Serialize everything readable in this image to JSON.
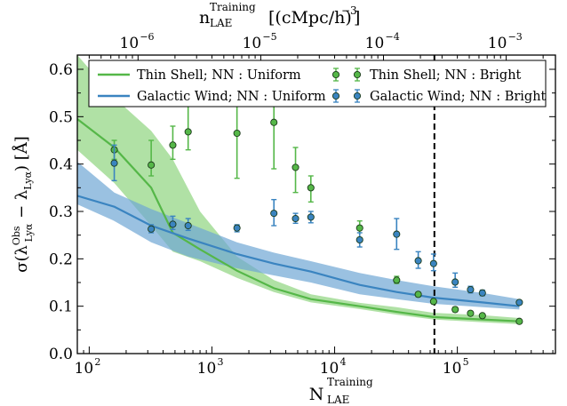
{
  "chart_data": {
    "type": "line",
    "xlabel_main": "N",
    "xlabel_sup": "Training",
    "xlabel_sub": "LAE",
    "top_xlabel_main": "n",
    "top_xlabel_sup": "Training",
    "top_xlabel_sub": "LAE",
    "top_xlabel_units": "[(cMpc/h)",
    "top_xlabel_units_exp": "−3",
    "top_xlabel_units_close": "]",
    "ylabel_pre": "σ(λ",
    "ylabel_sup1": "Obs",
    "ylabel_sub1": "Lyα",
    "ylabel_mid": " − λ",
    "ylabel_sub2": "Lyα",
    "ylabel_post": ") [Å]",
    "x_scale": "log",
    "xlim": [
      80,
      630000
    ],
    "ylim": [
      0.0,
      0.63
    ],
    "y_ticks": [
      0.0,
      0.1,
      0.2,
      0.3,
      0.4,
      0.5,
      0.6
    ],
    "y_tick_labels": [
      "0.0",
      "0.1",
      "0.2",
      "0.3",
      "0.4",
      "0.5",
      "0.6"
    ],
    "x_ticks": [
      100,
      1000,
      10000,
      100000
    ],
    "x_tick_labels": [
      {
        "base": "10",
        "exp": "2"
      },
      {
        "base": "10",
        "exp": "3"
      },
      {
        "base": "10",
        "exp": "4"
      },
      {
        "base": "10",
        "exp": "5"
      }
    ],
    "top_x_ticks_at_bottom": [
      250,
      2500,
      25000,
      250000
    ],
    "top_x_tick_labels": [
      {
        "base": "10",
        "exp": "−6"
      },
      {
        "base": "10",
        "exp": "−5"
      },
      {
        "base": "10",
        "exp": "−4"
      },
      {
        "base": "10",
        "exp": "−3"
      }
    ],
    "vline_x": 65000,
    "grid": false,
    "legend_position": "top",
    "colors": {
      "green": "#55b748",
      "green_fill": "#8fd47f",
      "blue": "#3a84c0",
      "blue_fill": "#6fa7d4"
    },
    "series": [
      {
        "name": "Thin Shell; NN : Uniform",
        "kind": "line_band",
        "color": "green",
        "x": [
          80,
          160,
          320,
          480,
          800,
          1600,
          3200,
          6400,
          16000,
          32000,
          64000,
          160000,
          320000
        ],
        "y": [
          0.495,
          0.435,
          0.35,
          0.255,
          0.22,
          0.175,
          0.138,
          0.115,
          0.1,
          0.088,
          0.077,
          0.072,
          0.068
        ],
        "lower": [
          0.43,
          0.36,
          0.27,
          0.215,
          0.195,
          0.16,
          0.13,
          0.108,
          0.094,
          0.082,
          0.072,
          0.066,
          0.062
        ],
        "upper": [
          0.63,
          0.54,
          0.47,
          0.41,
          0.3,
          0.205,
          0.155,
          0.125,
          0.107,
          0.098,
          0.086,
          0.081,
          0.075
        ]
      },
      {
        "name": "Galactic Wind; NN : Uniform",
        "kind": "line_band",
        "color": "blue",
        "x": [
          80,
          160,
          320,
          640,
          1600,
          3200,
          6400,
          16000,
          32000,
          64000,
          160000,
          320000
        ],
        "y": [
          0.333,
          0.31,
          0.27,
          0.243,
          0.21,
          0.19,
          0.173,
          0.145,
          0.13,
          0.118,
          0.108,
          0.1
        ],
        "lower": [
          0.315,
          0.28,
          0.235,
          0.205,
          0.18,
          0.165,
          0.15,
          0.125,
          0.115,
          0.105,
          0.098,
          0.093
        ],
        "upper": [
          0.405,
          0.34,
          0.305,
          0.275,
          0.235,
          0.213,
          0.195,
          0.17,
          0.155,
          0.142,
          0.128,
          0.115
        ]
      },
      {
        "name": "Thin Shell; NN : Bright",
        "kind": "errorbar",
        "color": "green",
        "points": [
          {
            "x": 160,
            "y": 0.43,
            "lo": 0.41,
            "hi": 0.45
          },
          {
            "x": 320,
            "y": 0.398,
            "lo": 0.375,
            "hi": 0.45
          },
          {
            "x": 480,
            "y": 0.44,
            "lo": 0.41,
            "hi": 0.48
          },
          {
            "x": 640,
            "y": 0.468,
            "lo": 0.43,
            "hi": 0.6
          },
          {
            "x": 1600,
            "y": 0.465,
            "lo": 0.37,
            "hi": 0.6
          },
          {
            "x": 3200,
            "y": 0.488,
            "lo": 0.39,
            "hi": 0.6
          },
          {
            "x": 4800,
            "y": 0.393,
            "lo": 0.34,
            "hi": 0.435
          },
          {
            "x": 6400,
            "y": 0.35,
            "lo": 0.32,
            "hi": 0.375
          },
          {
            "x": 16000,
            "y": 0.265,
            "lo": 0.245,
            "hi": 0.28
          },
          {
            "x": 32000,
            "y": 0.155,
            "lo": 0.148,
            "hi": 0.163
          },
          {
            "x": 48000,
            "y": 0.125,
            "lo": 0.12,
            "hi": 0.13
          },
          {
            "x": 64000,
            "y": 0.11,
            "lo": 0.105,
            "hi": 0.115
          },
          {
            "x": 96000,
            "y": 0.093,
            "lo": 0.088,
            "hi": 0.098
          },
          {
            "x": 128000,
            "y": 0.085,
            "lo": 0.081,
            "hi": 0.089
          },
          {
            "x": 160000,
            "y": 0.08,
            "lo": 0.076,
            "hi": 0.084
          },
          {
            "x": 320000,
            "y": 0.068,
            "lo": 0.065,
            "hi": 0.071
          }
        ]
      },
      {
        "name": "Galactic Wind; NN : Bright",
        "kind": "errorbar",
        "color": "blue",
        "points": [
          {
            "x": 160,
            "y": 0.402,
            "lo": 0.365,
            "hi": 0.44
          },
          {
            "x": 320,
            "y": 0.263,
            "lo": 0.255,
            "hi": 0.272
          },
          {
            "x": 480,
            "y": 0.273,
            "lo": 0.262,
            "hi": 0.29
          },
          {
            "x": 640,
            "y": 0.27,
            "lo": 0.26,
            "hi": 0.285
          },
          {
            "x": 1600,
            "y": 0.265,
            "lo": 0.257,
            "hi": 0.272
          },
          {
            "x": 3200,
            "y": 0.296,
            "lo": 0.27,
            "hi": 0.325
          },
          {
            "x": 4800,
            "y": 0.285,
            "lo": 0.275,
            "hi": 0.296
          },
          {
            "x": 6400,
            "y": 0.288,
            "lo": 0.276,
            "hi": 0.3
          },
          {
            "x": 16000,
            "y": 0.24,
            "lo": 0.225,
            "hi": 0.255
          },
          {
            "x": 32000,
            "y": 0.252,
            "lo": 0.22,
            "hi": 0.285
          },
          {
            "x": 48000,
            "y": 0.196,
            "lo": 0.18,
            "hi": 0.215
          },
          {
            "x": 64000,
            "y": 0.19,
            "lo": 0.175,
            "hi": 0.21
          },
          {
            "x": 96000,
            "y": 0.151,
            "lo": 0.14,
            "hi": 0.17
          },
          {
            "x": 128000,
            "y": 0.135,
            "lo": 0.128,
            "hi": 0.142
          },
          {
            "x": 160000,
            "y": 0.128,
            "lo": 0.122,
            "hi": 0.134
          },
          {
            "x": 320000,
            "y": 0.108,
            "lo": 0.104,
            "hi": 0.112
          }
        ]
      }
    ],
    "legend": [
      {
        "label": "Thin Shell; NN : Uniform",
        "series": 0
      },
      {
        "label": "Galactic Wind; NN : Uniform",
        "series": 1
      },
      {
        "label": "Thin Shell; NN : Bright",
        "series": 2
      },
      {
        "label": "Galactic Wind; NN : Bright",
        "series": 3
      }
    ]
  }
}
